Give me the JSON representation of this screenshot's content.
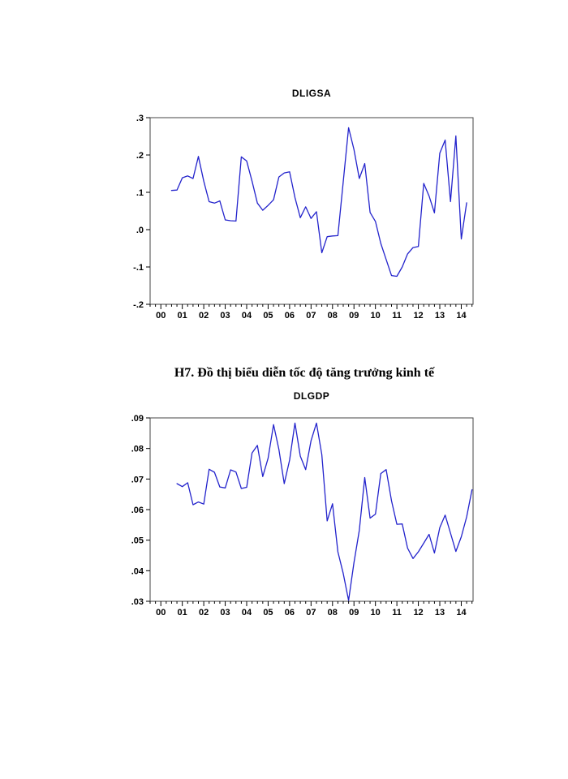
{
  "page": {
    "background": "#ffffff"
  },
  "caption": "H7. Đồ thị biểu diễn tốc độ tăng trưởng kinh tế",
  "chart_data": [
    {
      "type": "line",
      "title": "DLIGSA",
      "line_color": "#2323cc",
      "frame_color": "#444444",
      "tick_color": "#000000",
      "legend": "none",
      "grid": false,
      "xlim": [
        1999.5,
        2014.55
      ],
      "ylim": [
        -0.2,
        0.3
      ],
      "x_minor_step": 0.25,
      "x_ticks": [
        {
          "v": 2000,
          "label": "00"
        },
        {
          "v": 2001,
          "label": "01"
        },
        {
          "v": 2002,
          "label": "02"
        },
        {
          "v": 2003,
          "label": "03"
        },
        {
          "v": 2004,
          "label": "04"
        },
        {
          "v": 2005,
          "label": "05"
        },
        {
          "v": 2006,
          "label": "06"
        },
        {
          "v": 2007,
          "label": "07"
        },
        {
          "v": 2008,
          "label": "08"
        },
        {
          "v": 2009,
          "label": "09"
        },
        {
          "v": 2010,
          "label": "10"
        },
        {
          "v": 2011,
          "label": "11"
        },
        {
          "v": 2012,
          "label": "12"
        },
        {
          "v": 2013,
          "label": "13"
        },
        {
          "v": 2014,
          "label": "14"
        }
      ],
      "y_ticks": [
        {
          "v": 0.3,
          "label": ".3"
        },
        {
          "v": 0.2,
          "label": ".2"
        },
        {
          "v": 0.1,
          "label": ".1"
        },
        {
          "v": 0.0,
          "label": ".0"
        },
        {
          "v": -0.1,
          "label": "-.1"
        },
        {
          "v": -0.2,
          "label": "-.2"
        }
      ],
      "series": [
        {
          "name": "DLIGSA",
          "x": [
            2000.5,
            2000.75,
            2001.0,
            2001.25,
            2001.5,
            2001.75,
            2002.0,
            2002.25,
            2002.5,
            2002.75,
            2003.0,
            2003.25,
            2003.5,
            2003.75,
            2004.0,
            2004.25,
            2004.5,
            2004.75,
            2005.0,
            2005.25,
            2005.5,
            2005.75,
            2006.0,
            2006.25,
            2006.5,
            2006.75,
            2007.0,
            2007.25,
            2007.5,
            2007.75,
            2008.0,
            2008.25,
            2008.5,
            2008.75,
            2009.0,
            2009.25,
            2009.5,
            2009.75,
            2010.0,
            2010.25,
            2010.5,
            2010.75,
            2011.0,
            2011.25,
            2011.5,
            2011.75,
            2012.0,
            2012.25,
            2012.5,
            2012.75,
            2013.0,
            2013.25,
            2013.5,
            2013.75,
            2014.0,
            2014.25
          ],
          "y": [
            0.105,
            0.106,
            0.139,
            0.144,
            0.137,
            0.196,
            0.13,
            0.075,
            0.071,
            0.077,
            0.026,
            0.024,
            0.023,
            0.195,
            0.184,
            0.13,
            0.071,
            0.052,
            0.065,
            0.08,
            0.141,
            0.152,
            0.155,
            0.086,
            0.032,
            0.061,
            0.03,
            0.048,
            -0.062,
            -0.019,
            -0.017,
            -0.016,
            0.128,
            0.273,
            0.215,
            0.137,
            0.177,
            0.046,
            0.022,
            -0.037,
            -0.08,
            -0.123,
            -0.125,
            -0.1,
            -0.065,
            -0.048,
            -0.045,
            0.124,
            0.09,
            0.045,
            0.205,
            0.24,
            0.075,
            0.251,
            -0.025,
            0.072
          ]
        }
      ]
    },
    {
      "type": "line",
      "title": "DLGDP",
      "line_color": "#2323cc",
      "frame_color": "#444444",
      "tick_color": "#000000",
      "legend": "none",
      "grid": false,
      "xlim": [
        1999.5,
        2014.55
      ],
      "ylim": [
        0.03,
        0.09
      ],
      "x_minor_step": 0.25,
      "x_ticks": [
        {
          "v": 2000,
          "label": "00"
        },
        {
          "v": 2001,
          "label": "01"
        },
        {
          "v": 2002,
          "label": "02"
        },
        {
          "v": 2003,
          "label": "03"
        },
        {
          "v": 2004,
          "label": "04"
        },
        {
          "v": 2005,
          "label": "05"
        },
        {
          "v": 2006,
          "label": "06"
        },
        {
          "v": 2007,
          "label": "07"
        },
        {
          "v": 2008,
          "label": "08"
        },
        {
          "v": 2009,
          "label": "09"
        },
        {
          "v": 2010,
          "label": "10"
        },
        {
          "v": 2011,
          "label": "11"
        },
        {
          "v": 2012,
          "label": "12"
        },
        {
          "v": 2013,
          "label": "13"
        },
        {
          "v": 2014,
          "label": "14"
        }
      ],
      "y_ticks": [
        {
          "v": 0.09,
          "label": ".09"
        },
        {
          "v": 0.08,
          "label": ".08"
        },
        {
          "v": 0.07,
          "label": ".07"
        },
        {
          "v": 0.06,
          "label": ".06"
        },
        {
          "v": 0.05,
          "label": ".05"
        },
        {
          "v": 0.04,
          "label": ".04"
        },
        {
          "v": 0.03,
          "label": ".03"
        }
      ],
      "series": [
        {
          "name": "DLGDP",
          "x": [
            2000.75,
            2001.0,
            2001.25,
            2001.5,
            2001.75,
            2002.0,
            2002.25,
            2002.5,
            2002.75,
            2003.0,
            2003.25,
            2003.5,
            2003.75,
            2004.0,
            2004.25,
            2004.5,
            2004.75,
            2005.0,
            2005.25,
            2005.5,
            2005.75,
            2006.0,
            2006.25,
            2006.5,
            2006.75,
            2007.0,
            2007.25,
            2007.5,
            2007.75,
            2008.0,
            2008.25,
            2008.5,
            2008.75,
            2009.0,
            2009.25,
            2009.5,
            2009.75,
            2010.0,
            2010.25,
            2010.5,
            2010.75,
            2011.0,
            2011.25,
            2011.5,
            2011.75,
            2012.0,
            2012.25,
            2012.5,
            2012.75,
            2013.0,
            2013.25,
            2013.5,
            2013.75,
            2014.0,
            2014.25,
            2014.5
          ],
          "y": [
            0.0685,
            0.0675,
            0.0688,
            0.0616,
            0.0625,
            0.0618,
            0.0732,
            0.0722,
            0.0674,
            0.0671,
            0.073,
            0.0723,
            0.0669,
            0.0673,
            0.0785,
            0.081,
            0.0708,
            0.0768,
            0.0878,
            0.0797,
            0.0685,
            0.0762,
            0.0883,
            0.0775,
            0.0731,
            0.0825,
            0.0883,
            0.078,
            0.0563,
            0.0619,
            0.0462,
            0.0391,
            0.0303,
            0.0426,
            0.0532,
            0.0705,
            0.0572,
            0.0585,
            0.0718,
            0.0731,
            0.0629,
            0.0552,
            0.0553,
            0.0474,
            0.044,
            0.0462,
            0.049,
            0.0519,
            0.0458,
            0.0541,
            0.0582,
            0.0523,
            0.0463,
            0.0511,
            0.0576,
            0.0665
          ]
        }
      ]
    }
  ]
}
